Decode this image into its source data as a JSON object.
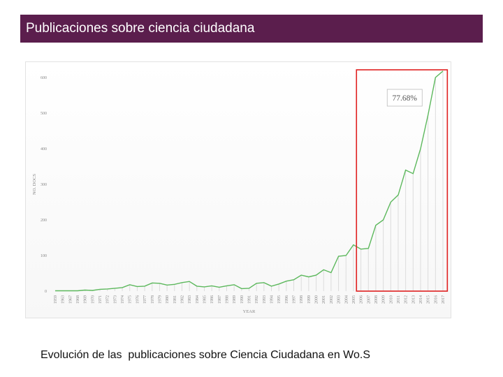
{
  "header": {
    "title": "Publicaciones sobre ciencia ciudadana"
  },
  "caption": "Evolución de las  publicaciones sobre Ciencia Ciudadana en Wo.S",
  "colors": {
    "header_bg": "#5b1e4d",
    "line": "#5cb85c",
    "highlight_box": "#e02020"
  },
  "chart_data": {
    "type": "line",
    "xlabel": "YEAR",
    "ylabel": "NO. DOCS",
    "ylim": [
      0,
      600
    ],
    "yticks": [
      0,
      100,
      200,
      300,
      400,
      500,
      600
    ],
    "grid": false,
    "x": [
      "1959",
      "1963",
      "1967",
      "1968",
      "1969",
      "1970",
      "1971",
      "1972",
      "1973",
      "1974",
      "1975",
      "1976",
      "1977",
      "1978",
      "1979",
      "1980",
      "1981",
      "1982",
      "1983",
      "1984",
      "1985",
      "1986",
      "1987",
      "1988",
      "1989",
      "1990",
      "1991",
      "1992",
      "1993",
      "1994",
      "1995",
      "1996",
      "1997",
      "1998",
      "1999",
      "2000",
      "2001",
      "2002",
      "2003",
      "2004",
      "2005",
      "2006",
      "2007",
      "2008",
      "2009",
      "2010",
      "2011",
      "2012",
      "2013",
      "2014",
      "2015",
      "2016",
      "2017"
    ],
    "series": [
      {
        "values": [
          1,
          1,
          1,
          1,
          3,
          2,
          5,
          6,
          8,
          10,
          18,
          13,
          14,
          23,
          22,
          17,
          19,
          24,
          27,
          14,
          12,
          15,
          11,
          15,
          18,
          7,
          8,
          22,
          24,
          14,
          20,
          28,
          32,
          45,
          40,
          45,
          60,
          52,
          98,
          100,
          130,
          118,
          120,
          185,
          200,
          250,
          270,
          340,
          330,
          400,
          495,
          600,
          618
        ]
      }
    ],
    "highlight": {
      "from": "2006",
      "to": "2017",
      "label": "77.68%"
    }
  }
}
